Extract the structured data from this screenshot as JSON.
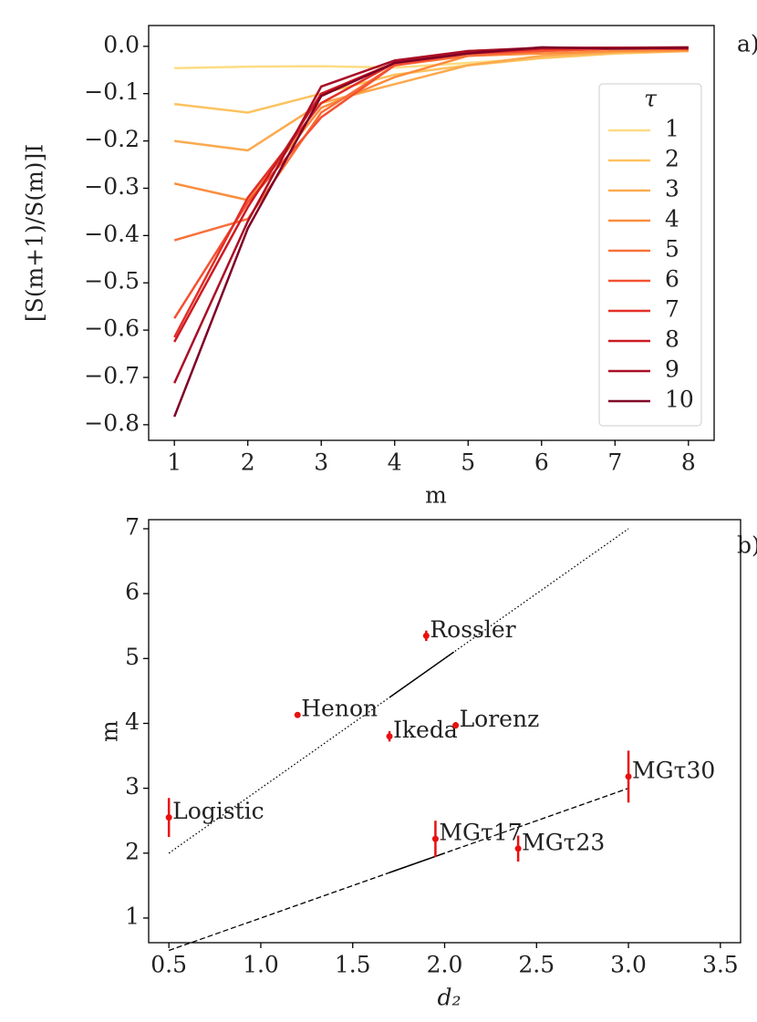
{
  "chart_data": [
    {
      "type": "line",
      "label": "a)",
      "xlabel": "m",
      "ylabel": "[S(m+1)/S(m)]I",
      "x": [
        1,
        2,
        3,
        4,
        5,
        6,
        7,
        8
      ],
      "xlim": [
        0.65,
        8.35
      ],
      "ylim": [
        -0.833,
        0.044
      ],
      "xticks": [
        1,
        2,
        3,
        4,
        5,
        6,
        7,
        8
      ],
      "yticks": [
        {
          "value": 0,
          "label": "0.0"
        },
        {
          "value": -0.1,
          "label": "−0.1"
        },
        {
          "value": -0.2,
          "label": "−0.2"
        },
        {
          "value": -0.3,
          "label": "−0.3"
        },
        {
          "value": -0.4,
          "label": "−0.4"
        },
        {
          "value": -0.5,
          "label": "−0.5"
        },
        {
          "value": -0.6,
          "label": "−0.6"
        },
        {
          "value": -0.7,
          "label": "−0.7"
        },
        {
          "value": -0.8,
          "label": "−0.8"
        }
      ],
      "legend_title": "τ",
      "legend": "upper right",
      "series": [
        {
          "name": "1",
          "color": "#fddc84",
          "values": [
            -0.046,
            -0.043,
            -0.042,
            -0.045,
            -0.035,
            -0.025,
            -0.015,
            -0.01
          ]
        },
        {
          "name": "2",
          "color": "#fdc25f",
          "values": [
            -0.122,
            -0.14,
            -0.1,
            -0.06,
            -0.04,
            -0.025,
            -0.015,
            -0.01
          ]
        },
        {
          "name": "3",
          "color": "#fca94f",
          "values": [
            -0.2,
            -0.22,
            -0.12,
            -0.08,
            -0.04,
            -0.02,
            -0.012,
            -0.01
          ]
        },
        {
          "name": "4",
          "color": "#fb8c3c",
          "values": [
            -0.29,
            -0.325,
            -0.13,
            -0.065,
            -0.02,
            -0.015,
            -0.01,
            -0.008
          ]
        },
        {
          "name": "5",
          "color": "#f9703a",
          "values": [
            -0.41,
            -0.365,
            -0.14,
            -0.04,
            -0.02,
            -0.01,
            -0.005,
            -0.005
          ]
        },
        {
          "name": "6",
          "color": "#f45131",
          "values": [
            -0.575,
            -0.33,
            -0.15,
            -0.04,
            -0.015,
            -0.01,
            -0.005,
            -0.005
          ]
        },
        {
          "name": "7",
          "color": "#e32f27",
          "values": [
            -0.615,
            -0.32,
            -0.12,
            -0.035,
            -0.01,
            -0.005,
            -0.003,
            -0.003
          ]
        },
        {
          "name": "8",
          "color": "#cc1a23",
          "values": [
            -0.625,
            -0.34,
            -0.1,
            -0.035,
            -0.015,
            -0.005,
            -0.003,
            -0.005
          ]
        },
        {
          "name": "9",
          "color": "#aa0e26",
          "values": [
            -0.712,
            -0.37,
            -0.085,
            -0.03,
            -0.01,
            -0.003,
            -0.003,
            -0.002
          ]
        },
        {
          "name": "10",
          "color": "#7f0026",
          "values": [
            -0.783,
            -0.385,
            -0.105,
            -0.035,
            -0.015,
            -0.002,
            -0.005,
            -0.003
          ]
        }
      ]
    },
    {
      "type": "scatter",
      "label": "b)",
      "xlabel": "d₂",
      "ylabel": "m",
      "xlim": [
        0.39,
        3.61
      ],
      "ylim": [
        0.62,
        7.14
      ],
      "xticks": [
        0.5,
        {
          "value": 1,
          "label": "1.0"
        },
        1.5,
        {
          "value": 2,
          "label": "2.0"
        },
        2.5,
        {
          "value": 3,
          "label": "3.0"
        },
        3.5
      ],
      "yticks": [
        1,
        2,
        3,
        4,
        5,
        6,
        7
      ],
      "color": "#e8100f",
      "points": [
        {
          "label": "Logistic",
          "x": 0.5,
          "y": 2.55,
          "error": 0.3
        },
        {
          "label": "Henon",
          "x": 1.2,
          "y": 4.13,
          "error": 0.03
        },
        {
          "label": "Rossler",
          "x": 1.9,
          "y": 5.35,
          "error": 0.08
        },
        {
          "label": "Ikeda",
          "x": 1.7,
          "y": 3.8,
          "error": 0.08
        },
        {
          "label": "Lorenz",
          "x": 2.06,
          "y": 3.97,
          "error": 0.05
        },
        {
          "label": "MGτ17",
          "x": 1.95,
          "y": 2.22,
          "error": 0.28
        },
        {
          "label": "MGτ23",
          "x": 2.4,
          "y": 2.07,
          "error": 0.2
        },
        {
          "label": "MGτ30",
          "x": 3.0,
          "y": 3.18,
          "error": 0.4
        }
      ],
      "lines": [
        {
          "style": "dotted",
          "x": [
            0.5,
            3
          ],
          "y": [
            2,
            7
          ],
          "solid_x": [
            1.7,
            2.05
          ]
        },
        {
          "style": "dashed",
          "x": [
            0.5,
            3
          ],
          "y": [
            0.5,
            3
          ],
          "solid_x": [
            1.7,
            2.0
          ]
        }
      ]
    }
  ]
}
